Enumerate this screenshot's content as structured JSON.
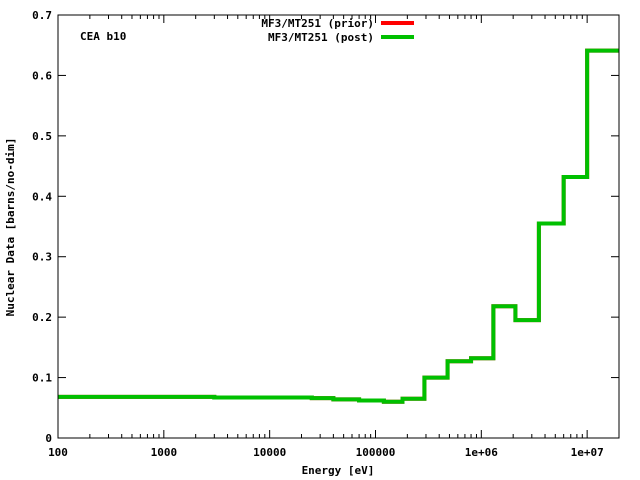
{
  "chart_data": {
    "type": "line",
    "title": "",
    "xlabel": "Energy [eV]",
    "ylabel": "Nuclear Data [barns/no-dim]",
    "x_scale": "log",
    "xlim": [
      100,
      20000000
    ],
    "ylim": [
      0,
      0.7
    ],
    "x_ticks": [
      {
        "value": 100,
        "label": "100"
      },
      {
        "value": 1000,
        "label": "1000"
      },
      {
        "value": 10000,
        "label": "10000"
      },
      {
        "value": 100000,
        "label": "100000"
      },
      {
        "value": 1000000,
        "label": "1e+06"
      },
      {
        "value": 10000000,
        "label": "1e+07"
      }
    ],
    "y_ticks": [
      {
        "value": 0,
        "label": "0"
      },
      {
        "value": 0.1,
        "label": "0.1"
      },
      {
        "value": 0.2,
        "label": "0.2"
      },
      {
        "value": 0.3,
        "label": "0.3"
      },
      {
        "value": 0.4,
        "label": "0.4"
      },
      {
        "value": 0.5,
        "label": "0.5"
      },
      {
        "value": 0.6,
        "label": "0.6"
      },
      {
        "value": 0.7,
        "label": "0.7"
      }
    ],
    "annotation": "CEA b10",
    "legend_position": "top-center",
    "grid": false,
    "series": [
      {
        "name": "MF3/MT251 (prior)",
        "color": "#ff0000",
        "step": true,
        "x": [
          100,
          3000,
          25000,
          40000,
          70000,
          120000,
          180000,
          290000,
          480000,
          800000,
          1300000,
          2100000,
          3500000,
          6000000,
          10000000,
          20000000
        ],
        "y": [
          0.068,
          0.067,
          0.066,
          0.064,
          0.062,
          0.06,
          0.065,
          0.1,
          0.127,
          0.132,
          0.218,
          0.195,
          0.355,
          0.432,
          0.641,
          0.641
        ]
      },
      {
        "name": "MF3/MT251 (post)",
        "color": "#00c000",
        "step": true,
        "x": [
          100,
          3000,
          25000,
          40000,
          70000,
          120000,
          180000,
          290000,
          480000,
          800000,
          1300000,
          2100000,
          3500000,
          6000000,
          10000000,
          20000000
        ],
        "y": [
          0.068,
          0.067,
          0.066,
          0.064,
          0.062,
          0.06,
          0.065,
          0.1,
          0.127,
          0.132,
          0.218,
          0.195,
          0.355,
          0.432,
          0.641,
          0.641
        ]
      }
    ]
  }
}
